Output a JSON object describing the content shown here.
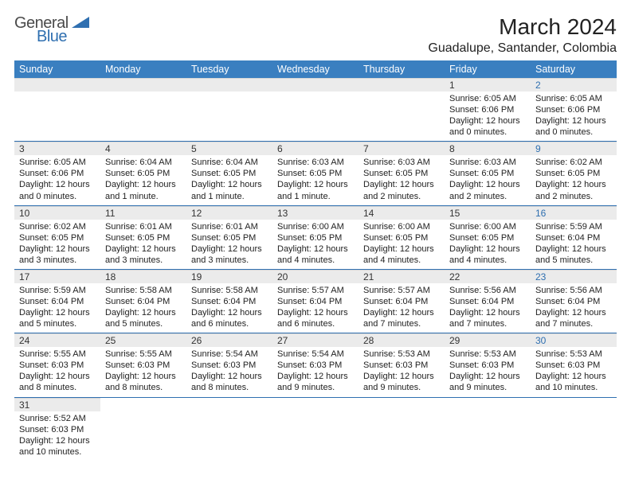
{
  "brand": {
    "general": "General",
    "blue": "Blue"
  },
  "title": "March 2024",
  "location": "Guadalupe, Santander, Colombia",
  "colors": {
    "header_bg": "#3a7fc0",
    "header_text": "#ffffff",
    "daynum_bg": "#ebebeb",
    "row_divider": "#2f6fb0",
    "saturday_num": "#2f6fb0",
    "body_text": "#222222",
    "page_bg": "#ffffff"
  },
  "typography": {
    "title_fontsize": 28,
    "location_fontsize": 16,
    "weekday_fontsize": 12.5,
    "daynum_fontsize": 12,
    "body_fontsize": 11
  },
  "weekdays": [
    "Sunday",
    "Monday",
    "Tuesday",
    "Wednesday",
    "Thursday",
    "Friday",
    "Saturday"
  ],
  "weeks": [
    [
      null,
      null,
      null,
      null,
      null,
      {
        "n": "1",
        "sr": "Sunrise: 6:05 AM",
        "ss": "Sunset: 6:06 PM",
        "dl1": "Daylight: 12 hours",
        "dl2": "and 0 minutes."
      },
      {
        "n": "2",
        "sr": "Sunrise: 6:05 AM",
        "ss": "Sunset: 6:06 PM",
        "dl1": "Daylight: 12 hours",
        "dl2": "and 0 minutes."
      }
    ],
    [
      {
        "n": "3",
        "sr": "Sunrise: 6:05 AM",
        "ss": "Sunset: 6:06 PM",
        "dl1": "Daylight: 12 hours",
        "dl2": "and 0 minutes."
      },
      {
        "n": "4",
        "sr": "Sunrise: 6:04 AM",
        "ss": "Sunset: 6:05 PM",
        "dl1": "Daylight: 12 hours",
        "dl2": "and 1 minute."
      },
      {
        "n": "5",
        "sr": "Sunrise: 6:04 AM",
        "ss": "Sunset: 6:05 PM",
        "dl1": "Daylight: 12 hours",
        "dl2": "and 1 minute."
      },
      {
        "n": "6",
        "sr": "Sunrise: 6:03 AM",
        "ss": "Sunset: 6:05 PM",
        "dl1": "Daylight: 12 hours",
        "dl2": "and 1 minute."
      },
      {
        "n": "7",
        "sr": "Sunrise: 6:03 AM",
        "ss": "Sunset: 6:05 PM",
        "dl1": "Daylight: 12 hours",
        "dl2": "and 2 minutes."
      },
      {
        "n": "8",
        "sr": "Sunrise: 6:03 AM",
        "ss": "Sunset: 6:05 PM",
        "dl1": "Daylight: 12 hours",
        "dl2": "and 2 minutes."
      },
      {
        "n": "9",
        "sr": "Sunrise: 6:02 AM",
        "ss": "Sunset: 6:05 PM",
        "dl1": "Daylight: 12 hours",
        "dl2": "and 2 minutes."
      }
    ],
    [
      {
        "n": "10",
        "sr": "Sunrise: 6:02 AM",
        "ss": "Sunset: 6:05 PM",
        "dl1": "Daylight: 12 hours",
        "dl2": "and 3 minutes."
      },
      {
        "n": "11",
        "sr": "Sunrise: 6:01 AM",
        "ss": "Sunset: 6:05 PM",
        "dl1": "Daylight: 12 hours",
        "dl2": "and 3 minutes."
      },
      {
        "n": "12",
        "sr": "Sunrise: 6:01 AM",
        "ss": "Sunset: 6:05 PM",
        "dl1": "Daylight: 12 hours",
        "dl2": "and 3 minutes."
      },
      {
        "n": "13",
        "sr": "Sunrise: 6:00 AM",
        "ss": "Sunset: 6:05 PM",
        "dl1": "Daylight: 12 hours",
        "dl2": "and 4 minutes."
      },
      {
        "n": "14",
        "sr": "Sunrise: 6:00 AM",
        "ss": "Sunset: 6:05 PM",
        "dl1": "Daylight: 12 hours",
        "dl2": "and 4 minutes."
      },
      {
        "n": "15",
        "sr": "Sunrise: 6:00 AM",
        "ss": "Sunset: 6:05 PM",
        "dl1": "Daylight: 12 hours",
        "dl2": "and 4 minutes."
      },
      {
        "n": "16",
        "sr": "Sunrise: 5:59 AM",
        "ss": "Sunset: 6:04 PM",
        "dl1": "Daylight: 12 hours",
        "dl2": "and 5 minutes."
      }
    ],
    [
      {
        "n": "17",
        "sr": "Sunrise: 5:59 AM",
        "ss": "Sunset: 6:04 PM",
        "dl1": "Daylight: 12 hours",
        "dl2": "and 5 minutes."
      },
      {
        "n": "18",
        "sr": "Sunrise: 5:58 AM",
        "ss": "Sunset: 6:04 PM",
        "dl1": "Daylight: 12 hours",
        "dl2": "and 5 minutes."
      },
      {
        "n": "19",
        "sr": "Sunrise: 5:58 AM",
        "ss": "Sunset: 6:04 PM",
        "dl1": "Daylight: 12 hours",
        "dl2": "and 6 minutes."
      },
      {
        "n": "20",
        "sr": "Sunrise: 5:57 AM",
        "ss": "Sunset: 6:04 PM",
        "dl1": "Daylight: 12 hours",
        "dl2": "and 6 minutes."
      },
      {
        "n": "21",
        "sr": "Sunrise: 5:57 AM",
        "ss": "Sunset: 6:04 PM",
        "dl1": "Daylight: 12 hours",
        "dl2": "and 7 minutes."
      },
      {
        "n": "22",
        "sr": "Sunrise: 5:56 AM",
        "ss": "Sunset: 6:04 PM",
        "dl1": "Daylight: 12 hours",
        "dl2": "and 7 minutes."
      },
      {
        "n": "23",
        "sr": "Sunrise: 5:56 AM",
        "ss": "Sunset: 6:04 PM",
        "dl1": "Daylight: 12 hours",
        "dl2": "and 7 minutes."
      }
    ],
    [
      {
        "n": "24",
        "sr": "Sunrise: 5:55 AM",
        "ss": "Sunset: 6:03 PM",
        "dl1": "Daylight: 12 hours",
        "dl2": "and 8 minutes."
      },
      {
        "n": "25",
        "sr": "Sunrise: 5:55 AM",
        "ss": "Sunset: 6:03 PM",
        "dl1": "Daylight: 12 hours",
        "dl2": "and 8 minutes."
      },
      {
        "n": "26",
        "sr": "Sunrise: 5:54 AM",
        "ss": "Sunset: 6:03 PM",
        "dl1": "Daylight: 12 hours",
        "dl2": "and 8 minutes."
      },
      {
        "n": "27",
        "sr": "Sunrise: 5:54 AM",
        "ss": "Sunset: 6:03 PM",
        "dl1": "Daylight: 12 hours",
        "dl2": "and 9 minutes."
      },
      {
        "n": "28",
        "sr": "Sunrise: 5:53 AM",
        "ss": "Sunset: 6:03 PM",
        "dl1": "Daylight: 12 hours",
        "dl2": "and 9 minutes."
      },
      {
        "n": "29",
        "sr": "Sunrise: 5:53 AM",
        "ss": "Sunset: 6:03 PM",
        "dl1": "Daylight: 12 hours",
        "dl2": "and 9 minutes."
      },
      {
        "n": "30",
        "sr": "Sunrise: 5:53 AM",
        "ss": "Sunset: 6:03 PM",
        "dl1": "Daylight: 12 hours",
        "dl2": "and 10 minutes."
      }
    ],
    [
      {
        "n": "31",
        "sr": "Sunrise: 5:52 AM",
        "ss": "Sunset: 6:03 PM",
        "dl1": "Daylight: 12 hours",
        "dl2": "and 10 minutes."
      },
      null,
      null,
      null,
      null,
      null,
      null
    ]
  ]
}
